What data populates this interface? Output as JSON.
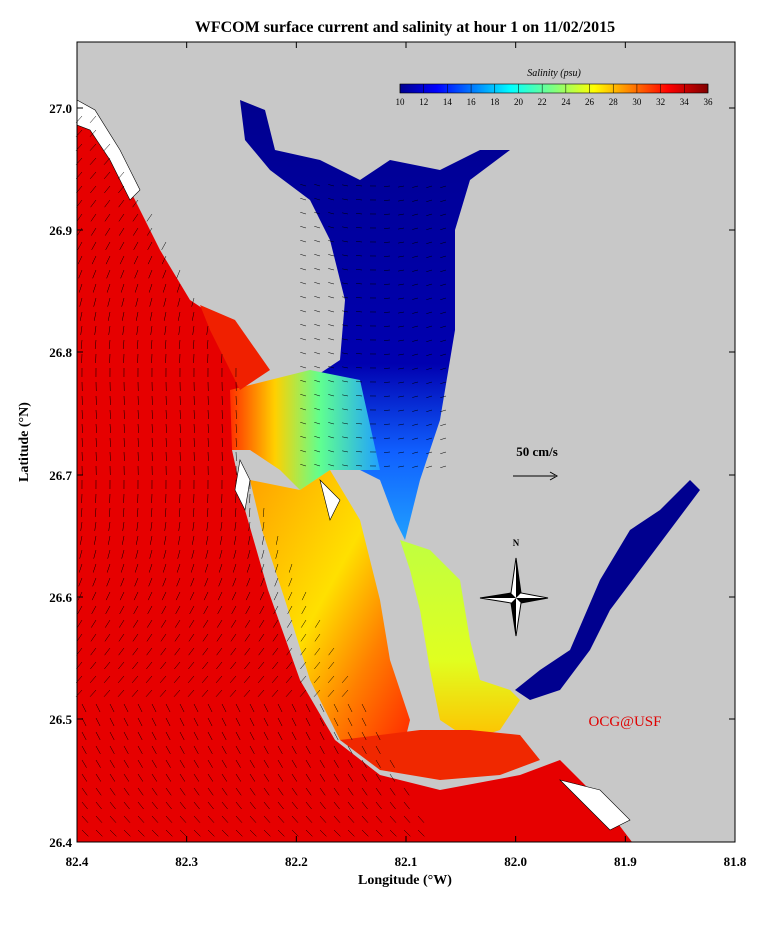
{
  "title": "WFCOM surface current and salinity at hour 1 on 11/02/2015",
  "x_axis": {
    "label": "Longitude (°W)",
    "ticks": [
      "82.4",
      "82.3",
      "82.2",
      "82.1",
      "82.0",
      "81.9",
      "81.8"
    ]
  },
  "y_axis": {
    "label": "Latitude (°N)",
    "ticks": [
      "27.0",
      "26.9",
      "26.8",
      "26.7",
      "26.6",
      "26.5",
      "26.4"
    ]
  },
  "colorbar": {
    "label": "Salinity (psu)",
    "ticks": [
      "10",
      "12",
      "14",
      "16",
      "18",
      "20",
      "22",
      "24",
      "26",
      "28",
      "30",
      "32",
      "34",
      "36"
    ]
  },
  "scale_label": "50 cm/s",
  "compass_label": "N",
  "credit": "OCG@USF"
}
